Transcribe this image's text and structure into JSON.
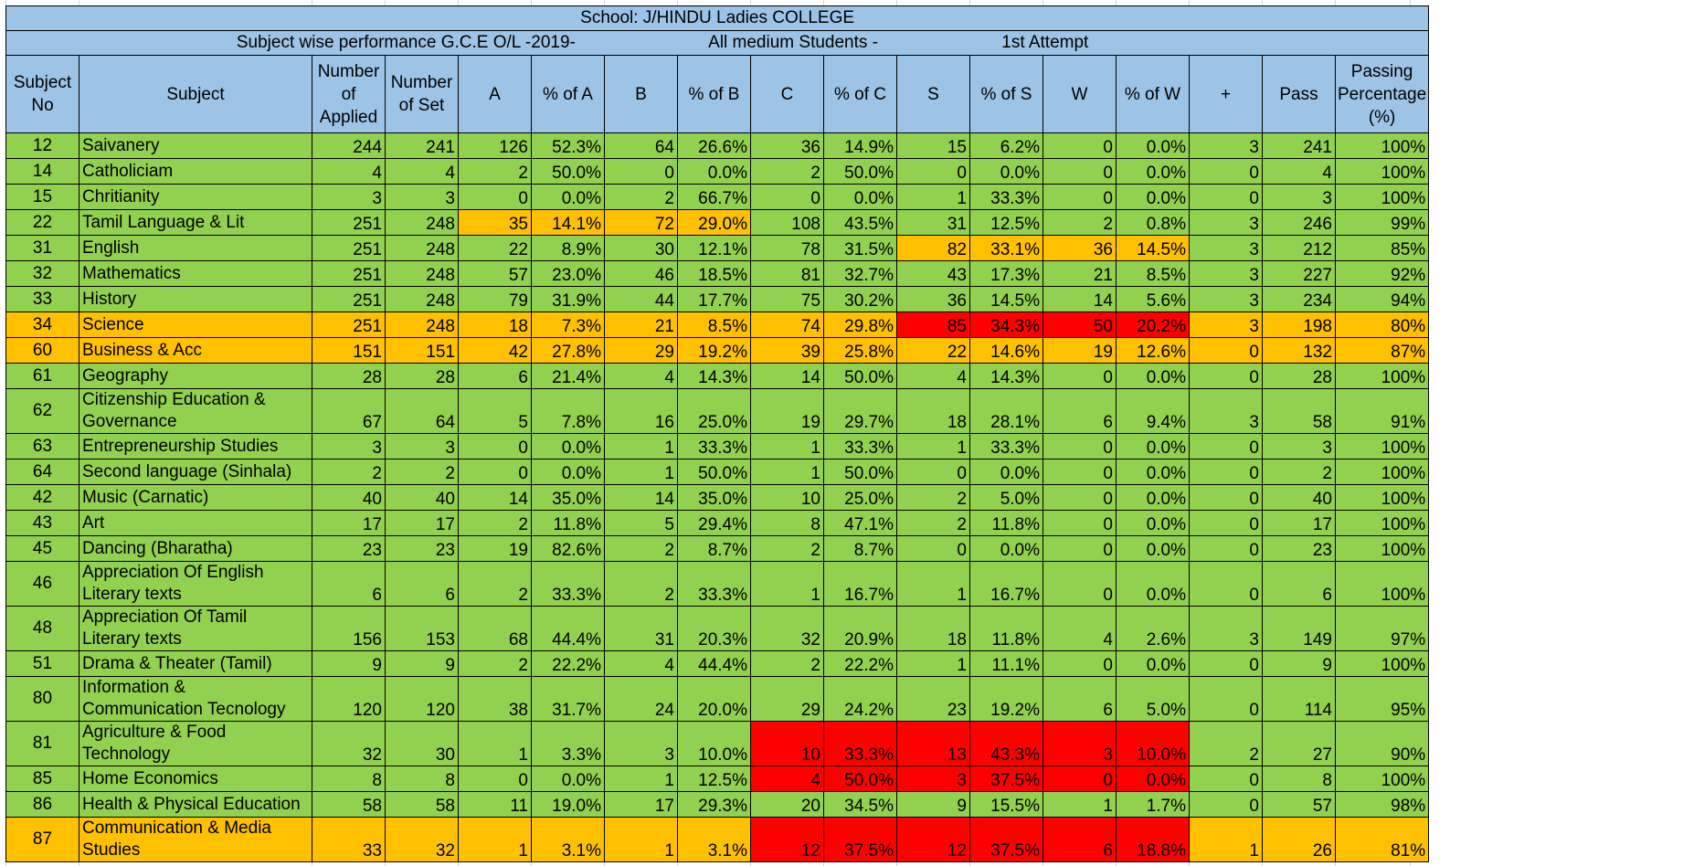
{
  "title": "School: J/HINDU Ladies COLLEGE",
  "subtitle": {
    "part1": "Subject wise performance G.C.E O/L -2019-",
    "part2": "All medium Students -",
    "part3": "1st Attempt"
  },
  "headers": [
    "Subject No",
    "Subject",
    "Number of Applied",
    "Number of Set",
    "A",
    "% of A",
    "B",
    "% of B",
    "C",
    "% of C",
    "S",
    "% of S",
    "W",
    "% of W",
    "+",
    "Pass",
    "Passing Percentage (%)"
  ],
  "colors": {
    "header": "#9dc3e6",
    "green": "#92d050",
    "orange": "#ffc000",
    "red": "#ff0000"
  },
  "rows": [
    {
      "no": "12",
      "subject": "Saivanery",
      "applied": "244",
      "set": "241",
      "a": "126",
      "pa": "52.3%",
      "b": "64",
      "pb": "26.6%",
      "c": "36",
      "pc": "14.9%",
      "s": "15",
      "ps": "6.2%",
      "w": "0",
      "pw": "0.0%",
      "plus": "3",
      "pass": "241",
      "pp": "100%"
    },
    {
      "no": "14",
      "subject": "Catholiciam",
      "applied": "4",
      "set": "4",
      "a": "2",
      "pa": "50.0%",
      "b": "0",
      "pb": "0.0%",
      "c": "2",
      "pc": "50.0%",
      "s": "0",
      "ps": "0.0%",
      "w": "0",
      "pw": "0.0%",
      "plus": "0",
      "pass": "4",
      "pp": "100%"
    },
    {
      "no": "15",
      "subject": "Chritianity",
      "applied": "3",
      "set": "3",
      "a": "0",
      "pa": "0.0%",
      "b": "2",
      "pb": "66.7%",
      "c": "0",
      "pc": "0.0%",
      "s": "1",
      "ps": "33.3%",
      "w": "0",
      "pw": "0.0%",
      "plus": "0",
      "pass": "3",
      "pp": "100%"
    },
    {
      "no": "22",
      "subject": "Tamil Language & Lit",
      "applied": "251",
      "set": "248",
      "a": "35",
      "pa": "14.1%",
      "b": "72",
      "pb": "29.0%",
      "c": "108",
      "pc": "43.5%",
      "s": "31",
      "ps": "12.5%",
      "w": "2",
      "pw": "0.8%",
      "plus": "3",
      "pass": "246",
      "pp": "99%"
    },
    {
      "no": "31",
      "subject": "English",
      "applied": "251",
      "set": "248",
      "a": "22",
      "pa": "8.9%",
      "b": "30",
      "pb": "12.1%",
      "c": "78",
      "pc": "31.5%",
      "s": "82",
      "ps": "33.1%",
      "w": "36",
      "pw": "14.5%",
      "plus": "3",
      "pass": "212",
      "pp": "85%"
    },
    {
      "no": "32",
      "subject": "Mathematics",
      "applied": "251",
      "set": "248",
      "a": "57",
      "pa": "23.0%",
      "b": "46",
      "pb": "18.5%",
      "c": "81",
      "pc": "32.7%",
      "s": "43",
      "ps": "17.3%",
      "w": "21",
      "pw": "8.5%",
      "plus": "3",
      "pass": "227",
      "pp": "92%"
    },
    {
      "no": "33",
      "subject": "History",
      "applied": "251",
      "set": "248",
      "a": "79",
      "pa": "31.9%",
      "b": "44",
      "pb": "17.7%",
      "c": "75",
      "pc": "30.2%",
      "s": "36",
      "ps": "14.5%",
      "w": "14",
      "pw": "5.6%",
      "plus": "3",
      "pass": "234",
      "pp": "94%"
    },
    {
      "no": "34",
      "subject": "Science",
      "applied": "251",
      "set": "248",
      "a": "18",
      "pa": "7.3%",
      "b": "21",
      "pb": "8.5%",
      "c": "74",
      "pc": "29.8%",
      "s": "85",
      "ps": "34.3%",
      "w": "50",
      "pw": "20.2%",
      "plus": "3",
      "pass": "198",
      "pp": "80%"
    },
    {
      "no": "60",
      "subject": "Business & Acc",
      "applied": "151",
      "set": "151",
      "a": "42",
      "pa": "27.8%",
      "b": "29",
      "pb": "19.2%",
      "c": "39",
      "pc": "25.8%",
      "s": "22",
      "ps": "14.6%",
      "w": "19",
      "pw": "12.6%",
      "plus": "0",
      "pass": "132",
      "pp": "87%"
    },
    {
      "no": "61",
      "subject": "Geography",
      "applied": "28",
      "set": "28",
      "a": "6",
      "pa": "21.4%",
      "b": "4",
      "pb": "14.3%",
      "c": "14",
      "pc": "50.0%",
      "s": "4",
      "ps": "14.3%",
      "w": "0",
      "pw": "0.0%",
      "plus": "0",
      "pass": "28",
      "pp": "100%"
    },
    {
      "no": "62",
      "subject": "Citizenship Education & Governance",
      "applied": "67",
      "set": "64",
      "a": "5",
      "pa": "7.8%",
      "b": "16",
      "pb": "25.0%",
      "c": "19",
      "pc": "29.7%",
      "s": "18",
      "ps": "28.1%",
      "w": "6",
      "pw": "9.4%",
      "plus": "3",
      "pass": "58",
      "pp": "91%"
    },
    {
      "no": "63",
      "subject": "Entrepreneurship Studies",
      "applied": "3",
      "set": "3",
      "a": "0",
      "pa": "0.0%",
      "b": "1",
      "pb": "33.3%",
      "c": "1",
      "pc": "33.3%",
      "s": "1",
      "ps": "33.3%",
      "w": "0",
      "pw": "0.0%",
      "plus": "0",
      "pass": "3",
      "pp": "100%"
    },
    {
      "no": "64",
      "subject": "Second language (Sinhala)",
      "applied": "2",
      "set": "2",
      "a": "0",
      "pa": "0.0%",
      "b": "1",
      "pb": "50.0%",
      "c": "1",
      "pc": "50.0%",
      "s": "0",
      "ps": "0.0%",
      "w": "0",
      "pw": "0.0%",
      "plus": "0",
      "pass": "2",
      "pp": "100%"
    },
    {
      "no": "42",
      "subject": "Music (Carnatic)",
      "applied": "40",
      "set": "40",
      "a": "14",
      "pa": "35.0%",
      "b": "14",
      "pb": "35.0%",
      "c": "10",
      "pc": "25.0%",
      "s": "2",
      "ps": "5.0%",
      "w": "0",
      "pw": "0.0%",
      "plus": "0",
      "pass": "40",
      "pp": "100%"
    },
    {
      "no": "43",
      "subject": "Art",
      "applied": "17",
      "set": "17",
      "a": "2",
      "pa": "11.8%",
      "b": "5",
      "pb": "29.4%",
      "c": "8",
      "pc": "47.1%",
      "s": "2",
      "ps": "11.8%",
      "w": "0",
      "pw": "0.0%",
      "plus": "0",
      "pass": "17",
      "pp": "100%"
    },
    {
      "no": "45",
      "subject": "Dancing (Bharatha)",
      "applied": "23",
      "set": "23",
      "a": "19",
      "pa": "82.6%",
      "b": "2",
      "pb": "8.7%",
      "c": "2",
      "pc": "8.7%",
      "s": "0",
      "ps": "0.0%",
      "w": "0",
      "pw": "0.0%",
      "plus": "0",
      "pass": "23",
      "pp": "100%"
    },
    {
      "no": "46",
      "subject": "Appreciation Of English Literary texts",
      "applied": "6",
      "set": "6",
      "a": "2",
      "pa": "33.3%",
      "b": "2",
      "pb": "33.3%",
      "c": "1",
      "pc": "16.7%",
      "s": "1",
      "ps": "16.7%",
      "w": "0",
      "pw": "0.0%",
      "plus": "0",
      "pass": "6",
      "pp": "100%"
    },
    {
      "no": "48",
      "subject": "Appreciation Of Tamil Literary texts",
      "applied": "156",
      "set": "153",
      "a": "68",
      "pa": "44.4%",
      "b": "31",
      "pb": "20.3%",
      "c": "32",
      "pc": "20.9%",
      "s": "18",
      "ps": "11.8%",
      "w": "4",
      "pw": "2.6%",
      "plus": "3",
      "pass": "149",
      "pp": "97%"
    },
    {
      "no": "51",
      "subject": "Drama & Theater (Tamil)",
      "applied": "9",
      "set": "9",
      "a": "2",
      "pa": "22.2%",
      "b": "4",
      "pb": "44.4%",
      "c": "2",
      "pc": "22.2%",
      "s": "1",
      "ps": "11.1%",
      "w": "0",
      "pw": "0.0%",
      "plus": "0",
      "pass": "9",
      "pp": "100%"
    },
    {
      "no": "80",
      "subject": "Information & Communication Tecnology",
      "applied": "120",
      "set": "120",
      "a": "38",
      "pa": "31.7%",
      "b": "24",
      "pb": "20.0%",
      "c": "29",
      "pc": "24.2%",
      "s": "23",
      "ps": "19.2%",
      "w": "6",
      "pw": "5.0%",
      "plus": "0",
      "pass": "114",
      "pp": "95%"
    },
    {
      "no": "81",
      "subject": "Agriculture & Food Technology",
      "applied": "32",
      "set": "30",
      "a": "1",
      "pa": "3.3%",
      "b": "3",
      "pb": "10.0%",
      "c": "10",
      "pc": "33.3%",
      "s": "13",
      "ps": "43.3%",
      "w": "3",
      "pw": "10.0%",
      "plus": "2",
      "pass": "27",
      "pp": "90%"
    },
    {
      "no": "85",
      "subject": "Home Economics",
      "applied": "8",
      "set": "8",
      "a": "0",
      "pa": "0.0%",
      "b": "1",
      "pb": "12.5%",
      "c": "4",
      "pc": "50.0%",
      "s": "3",
      "ps": "37.5%",
      "w": "0",
      "pw": "0.0%",
      "plus": "0",
      "pass": "8",
      "pp": "100%"
    },
    {
      "no": "86",
      "subject": "Health & Physical Education",
      "applied": "58",
      "set": "58",
      "a": "11",
      "pa": "19.0%",
      "b": "17",
      "pb": "29.3%",
      "c": "20",
      "pc": "34.5%",
      "s": "9",
      "ps": "15.5%",
      "w": "1",
      "pw": "1.7%",
      "plus": "0",
      "pass": "57",
      "pp": "98%"
    },
    {
      "no": "87",
      "subject": "Communication & Media Studies",
      "applied": "33",
      "set": "32",
      "a": "1",
      "pa": "3.1%",
      "b": "1",
      "pb": "3.1%",
      "c": "12",
      "pc": "37.5%",
      "s": "12",
      "ps": "37.5%",
      "w": "6",
      "pw": "18.8%",
      "plus": "1",
      "pass": "26",
      "pp": "81%"
    }
  ]
}
